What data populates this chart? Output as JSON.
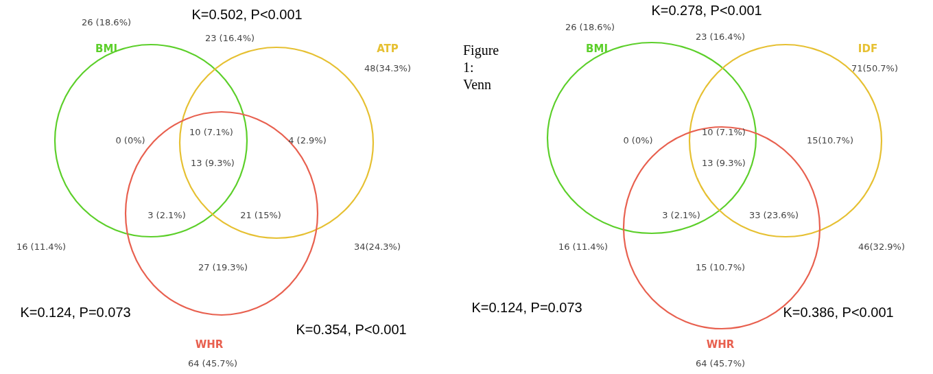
{
  "chart_data": [
    {
      "type": "other",
      "categories": [
        "BMI",
        "ATP",
        "WHR"
      ],
      "colors": [
        "#5ccf2a",
        "#e6c032",
        "#e8604f"
      ],
      "values": [
        26,
        48,
        64
      ],
      "value_labels": [
        "26 (18.6%)",
        "48(34.3%)",
        "64 (45.7%)"
      ],
      "annotations": [
        "23 (16.4%)",
        "0 (0%)",
        "10 (7.1%)",
        "4 (2.9%)",
        "13 (9.3%)",
        "3 (2.1%)",
        "21 (15%)",
        "16 (11.4%)",
        "27 (19.3%)",
        "34(24.3%)",
        "K=0.502, P<0.001",
        "K=0.124, P=0.073",
        "K=0.354, P<0.001",
        "Figure 1: Venn"
      ]
    },
    {
      "type": "other",
      "categories": [
        "BMI",
        "IDF",
        "WHR"
      ],
      "colors": [
        "#5ccf2a",
        "#e6c032",
        "#e8604f"
      ],
      "values": [
        26,
        71,
        64
      ],
      "value_labels": [
        "26 (18.6%)",
        "71(50.7%)",
        "64 (45.7%)"
      ],
      "annotations": [
        "23 (16.4%)",
        "0 (0%)",
        "10 (7.1%)",
        "15(10.7%)",
        "13 (9.3%)",
        "3 (2.1%)",
        "33 (23.6%)",
        "16 (11.4%)",
        "15 (10.7%)",
        "46(32.9%)",
        "K=0.278, P<0.001",
        "K=0.124, P=0.073",
        "K=0.386, P<0.001"
      ]
    }
  ]
}
